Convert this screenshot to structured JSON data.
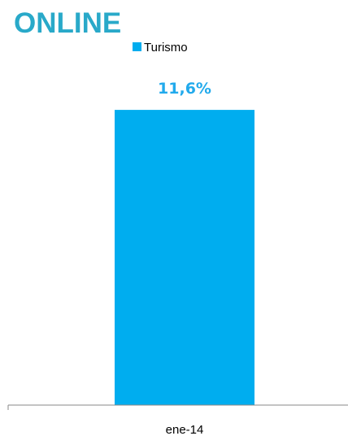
{
  "title": "ONLINE",
  "colors": {
    "title": "#29a9c9",
    "bar": "#00adef",
    "data_label": "#22aaec",
    "axis": "#8a8a8a"
  },
  "chart_data": {
    "type": "bar",
    "categories": [
      "ene-14"
    ],
    "series": [
      {
        "name": "Turismo",
        "values": [
          11.6
        ],
        "labels": [
          "11,6%"
        ]
      }
    ],
    "ylim": [
      0,
      14
    ],
    "grid": false,
    "legend_position": "top-left"
  }
}
